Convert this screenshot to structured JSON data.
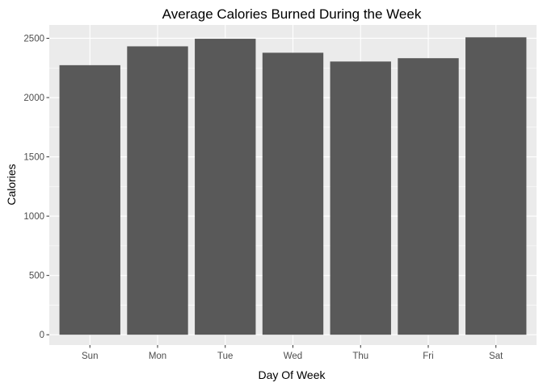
{
  "chart_data": {
    "type": "bar",
    "title": "Average Calories Burned During the Week",
    "xlabel": "Day Of Week",
    "ylabel": "Calories",
    "categories": [
      "Sun",
      "Mon",
      "Tue",
      "Wed",
      "Thu",
      "Fri",
      "Sat"
    ],
    "values": [
      2273,
      2432,
      2496,
      2378,
      2304,
      2332,
      2508
    ],
    "ylim": [
      -87,
      2612
    ],
    "yticks": [
      0,
      500,
      1000,
      1500,
      2000,
      2500
    ],
    "ytick_labels": [
      "0",
      "500",
      "1000",
      "1500",
      "2000",
      "2500"
    ],
    "grid": true,
    "legend": "none",
    "colors": {
      "bar": "#595959",
      "panel": "#ebebeb",
      "grid": "#ffffff",
      "tick": "#333333",
      "tick_text": "#4d4d4d"
    }
  }
}
